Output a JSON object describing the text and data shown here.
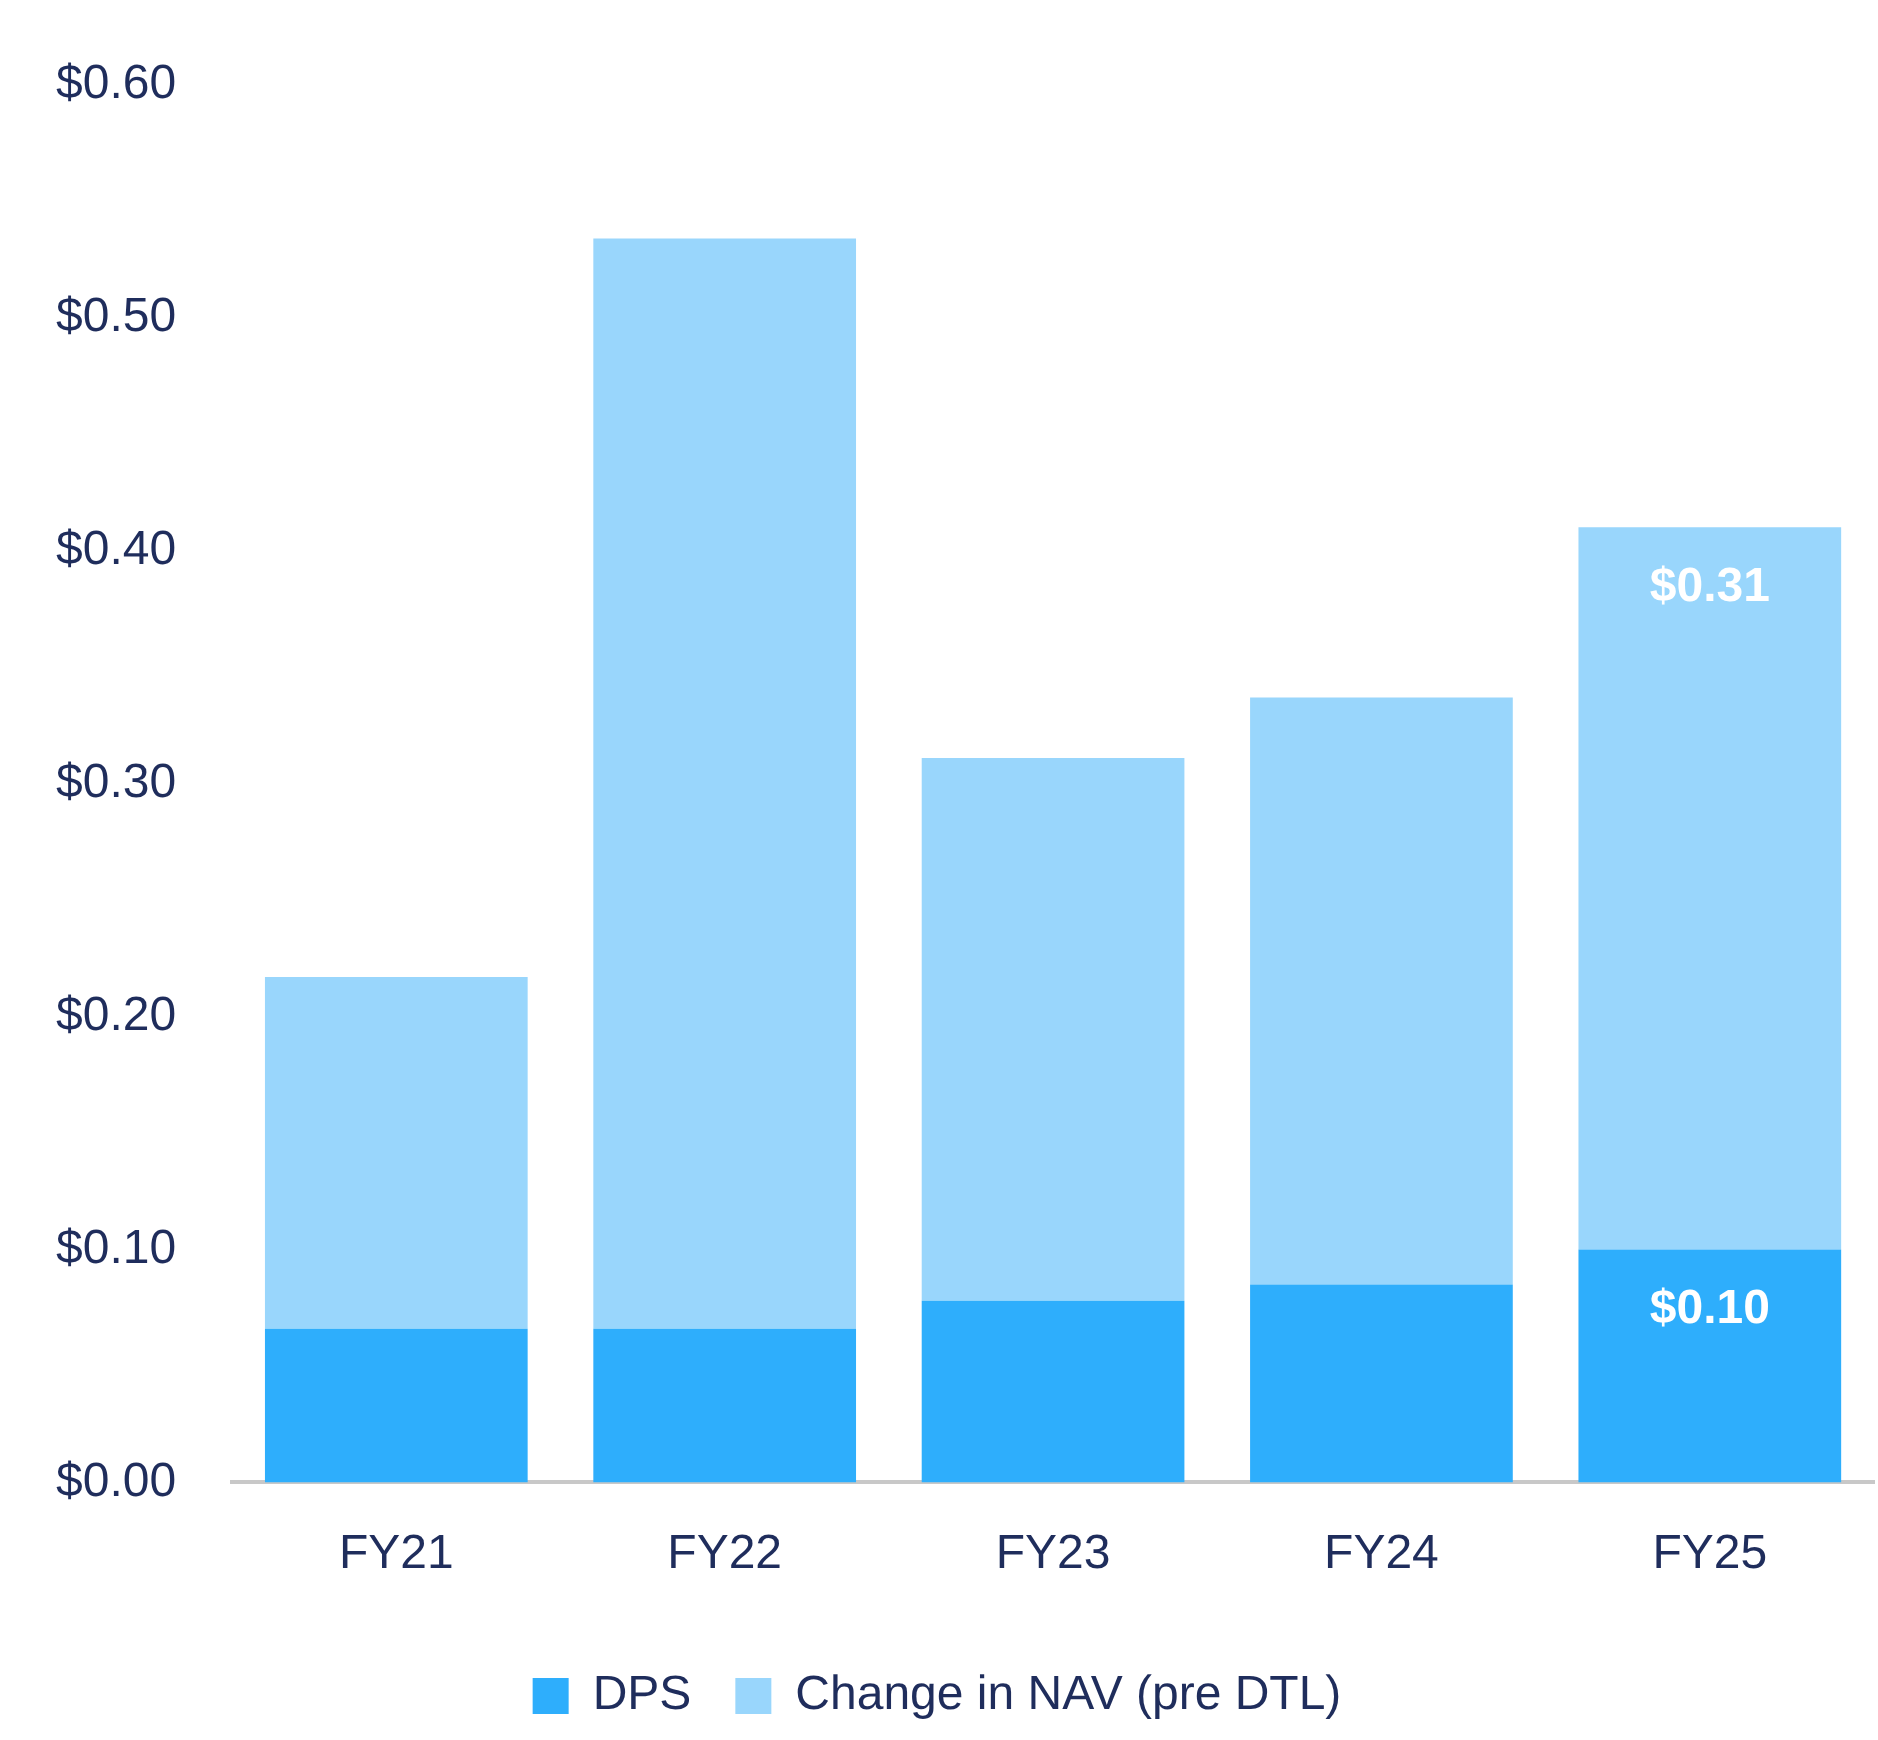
{
  "chart_data": {
    "type": "bar",
    "stacked": true,
    "categories": [
      "FY21",
      "FY22",
      "FY23",
      "FY24",
      "FY25"
    ],
    "series": [
      {
        "name": "DPS",
        "color": "#2eaefc",
        "values": [
          0.066,
          0.066,
          0.078,
          0.085,
          0.1
        ],
        "value_labels": [
          null,
          null,
          null,
          null,
          "$0.10"
        ]
      },
      {
        "name": "Change in NAV (pre DTL)",
        "color": "#99d6fc",
        "values": [
          0.151,
          0.468,
          0.233,
          0.252,
          0.31
        ],
        "value_labels": [
          null,
          null,
          null,
          null,
          "$0.31"
        ]
      }
    ],
    "ylim": [
      0,
      0.6
    ],
    "yticks": [
      {
        "value": 0,
        "label": "$0.00"
      },
      {
        "value": 0.1,
        "label": "$0.10"
      },
      {
        "value": 0.2,
        "label": "$0.20"
      },
      {
        "value": 0.3,
        "label": "$0.30"
      },
      {
        "value": 0.4,
        "label": "$0.40"
      },
      {
        "value": 0.5,
        "label": "$0.50"
      },
      {
        "value": 0.6,
        "label": "$0.60"
      }
    ],
    "grid": false,
    "legend": "bottom"
  }
}
